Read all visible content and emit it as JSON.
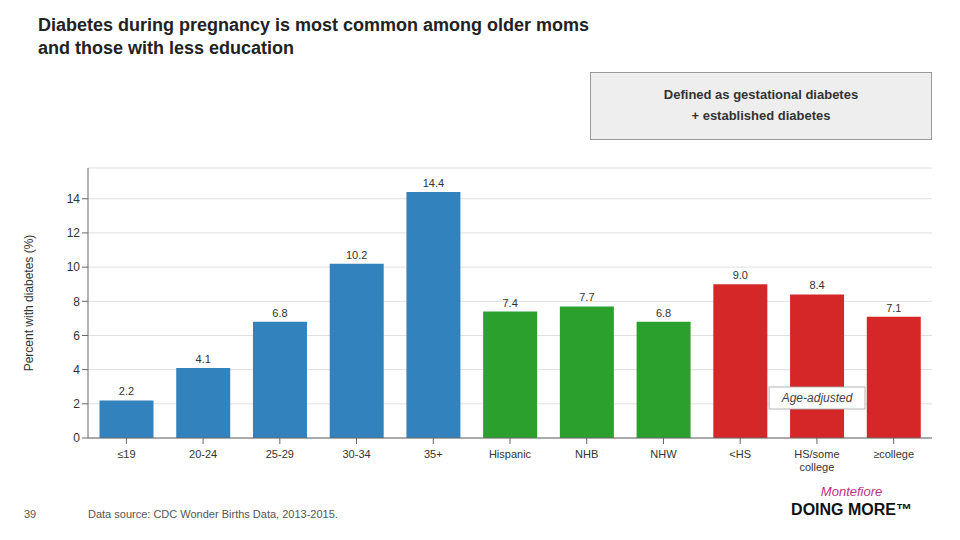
{
  "chart_data": {
    "type": "bar",
    "title": "Diabetes during pregnancy is most common among older moms\nand those with less education",
    "y_label": "Percent with diabetes (%)",
    "categories": [
      "≤19",
      "20-24",
      "25-29",
      "30-34",
      "35+",
      "Hispanic",
      "NHB",
      "NHW",
      "<HS",
      "HS/some\ncollege",
      "≥college"
    ],
    "values": [
      2.2,
      4.1,
      6.8,
      10.2,
      14.4,
      7.4,
      7.7,
      6.8,
      9.0,
      8.4,
      7.1
    ],
    "value_labels": [
      "2.2",
      "4.1",
      "6.8",
      "10.2",
      "14.4",
      "7.4",
      "7.7",
      "6.8",
      "9.0",
      "8.4",
      "7.1"
    ],
    "colors": [
      "#3182bd",
      "#3182bd",
      "#3182bd",
      "#3182bd",
      "#3182bd",
      "#2ca02c",
      "#2ca02c",
      "#2ca02c",
      "#d62728",
      "#d62728",
      "#d62728"
    ],
    "ylim": [
      0,
      15.8
    ],
    "yticks": [
      0,
      2,
      4,
      6,
      8,
      10,
      12,
      14
    ],
    "grid": true,
    "data_labels": true,
    "annotations": [
      {
        "text": "Defined as gestational diabetes\n+ established diabetes"
      },
      {
        "text": "Age-adjusted"
      },
      {
        "text": "Data source: CDC Wonder Births Data, 2013-2015."
      },
      {
        "text": "39"
      },
      {
        "text": "Montefiore"
      },
      {
        "text": "DOING MORE™"
      }
    ]
  }
}
